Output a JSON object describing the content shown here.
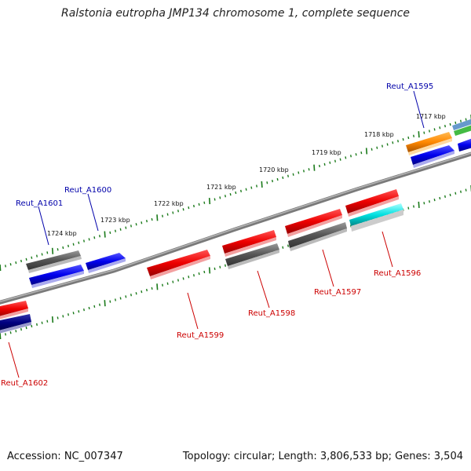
{
  "title": "Ralstonia eutropha JMP134 chromosome 1, complete sequence",
  "footer": {
    "accession": "Accession: NC_007347",
    "info": "Topology: circular; Length: 3,806,533 bp; Genes: 3,504"
  },
  "kbp_ticks": [
    "1717 kbp",
    "1718 kbp",
    "1719 kbp",
    "1720 kbp",
    "1721 kbp",
    "1722 kbp",
    "1723 kbp",
    "1724 kbp"
  ],
  "genes": {
    "Reut_A1595": "Reut_A1595",
    "Reut_A1596": "Reut_A1596",
    "Reut_A1597": "Reut_A1597",
    "Reut_A1598": "Reut_A1598",
    "Reut_A1599": "Reut_A1599",
    "Reut_A1600": "Reut_A1600",
    "Reut_A1601": "Reut_A1601",
    "Reut_A1602": "Reut_A1602"
  },
  "colors": {
    "forward_label": "#0000aa",
    "reverse_label": "#cc0000",
    "red": "#ee0000",
    "blue": "#0000ee",
    "gray": "#555555",
    "orange": "#ff8800",
    "cyan": "#00e0e0",
    "navy": "#000080",
    "green": "#44bb44",
    "tick": "#1a7a1a"
  }
}
